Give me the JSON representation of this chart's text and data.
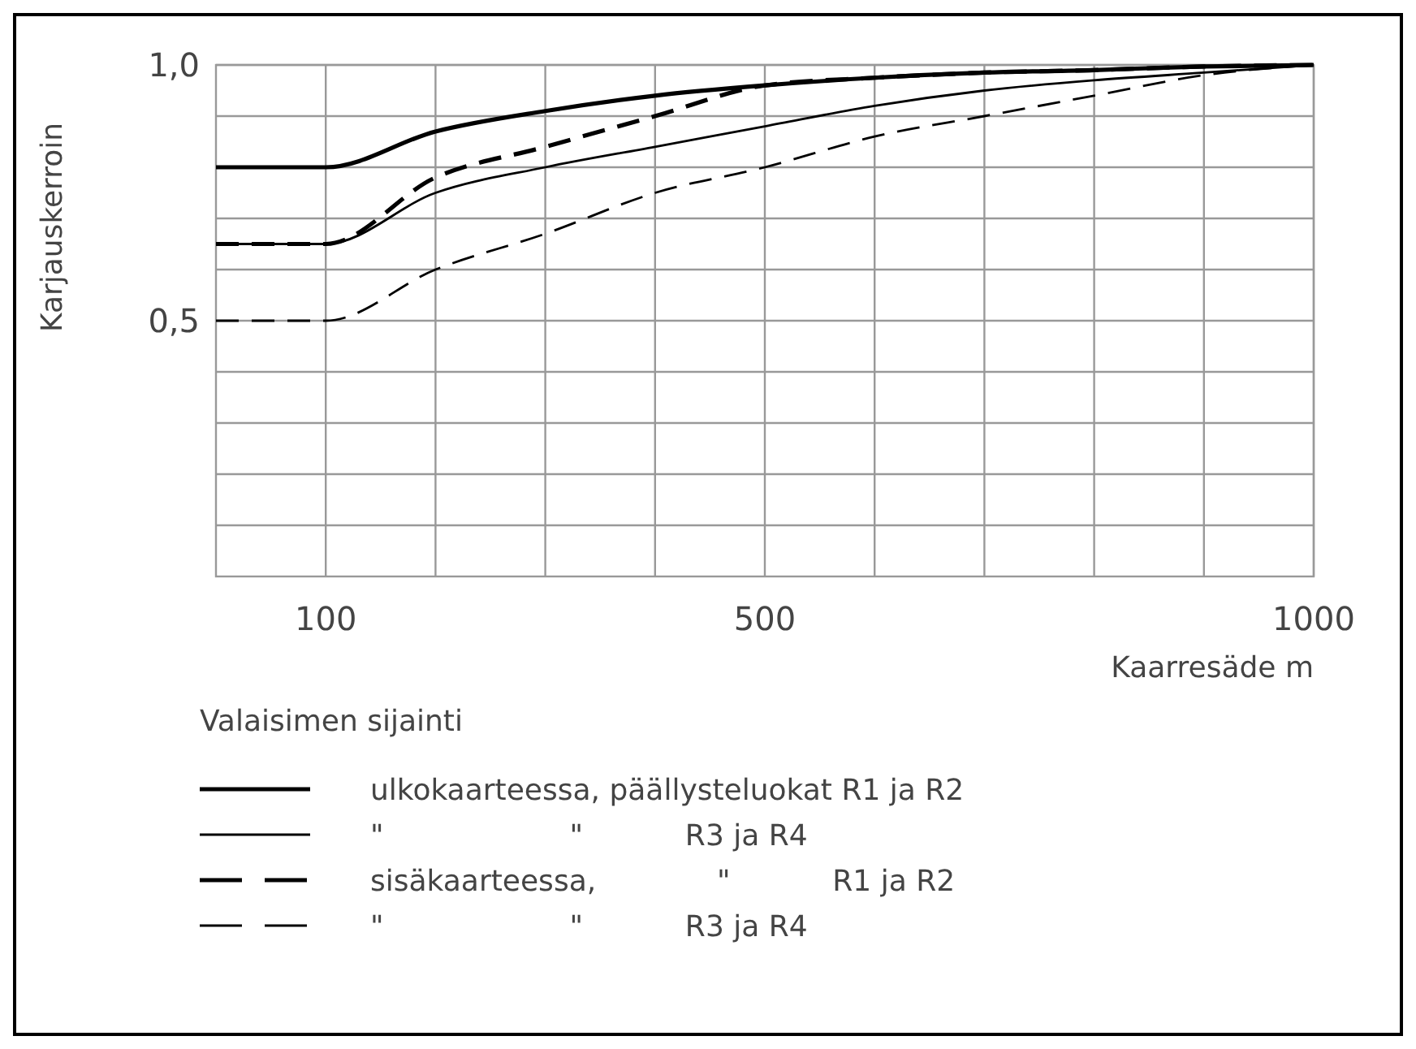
{
  "chart_data": {
    "type": "line",
    "xlabel": "Kaarresäde m",
    "ylabel": "Karjauskerroin",
    "legend_title": "Valaisimen sijainti",
    "legend": "bottom",
    "grid": true,
    "xlim": [
      0,
      1000
    ],
    "ylim": [
      0,
      1
    ],
    "xticks": [
      100,
      {
        "value": 200,
        "label": null
      },
      {
        "value": 300,
        "label": null
      },
      {
        "value": 400,
        "label": null
      },
      500,
      {
        "value": 600,
        "label": null
      },
      {
        "value": 700,
        "label": null
      },
      {
        "value": 800,
        "label": null
      },
      {
        "value": 900,
        "label": null
      },
      1000
    ],
    "yticks": [
      {
        "value": 0.1,
        "label": null
      },
      {
        "value": 0.2,
        "label": null
      },
      {
        "value": 0.3,
        "label": null
      },
      {
        "value": 0.4,
        "label": null
      },
      {
        "value": 0.5,
        "label": "0,5"
      },
      {
        "value": 0.6,
        "label": null
      },
      {
        "value": 0.7,
        "label": null
      },
      {
        "value": 0.8,
        "label": null
      },
      {
        "value": 0.9,
        "label": null
      },
      {
        "value": 1,
        "label": "1,0"
      }
    ],
    "x": [
      0,
      100,
      200,
      300,
      400,
      500,
      600,
      700,
      800,
      900,
      1000
    ],
    "series": [
      {
        "name": "ulkokaarteessa, päällysteluokat R1 ja R2",
        "color": "#000000",
        "line_style": "solid",
        "values": [
          0.8,
          0.8,
          0.87,
          0.91,
          0.94,
          0.96,
          0.975,
          0.985,
          0.99,
          0.997,
          1
        ]
      },
      {
        "name": "\"                    \"           R3 ja R4",
        "color": "#000000",
        "line_style": "solid",
        "values": [
          0.65,
          0.65,
          0.75,
          0.8,
          0.84,
          0.88,
          0.92,
          0.95,
          0.97,
          0.985,
          1
        ]
      },
      {
        "name": "sisäkaarteessa,             \"           R1 ja R2",
        "color": "#000000",
        "line_style": "dashed",
        "values": [
          0.65,
          0.65,
          0.78,
          0.84,
          0.9,
          0.96,
          0.975,
          0.985,
          0.99,
          0.997,
          1
        ]
      },
      {
        "name": "\"                    \"           R3 ja R4",
        "color": "#000000",
        "line_style": "dashed",
        "values": [
          0.5,
          0.5,
          0.6,
          0.67,
          0.75,
          0.8,
          0.86,
          0.9,
          0.94,
          0.98,
          1
        ]
      }
    ]
  }
}
